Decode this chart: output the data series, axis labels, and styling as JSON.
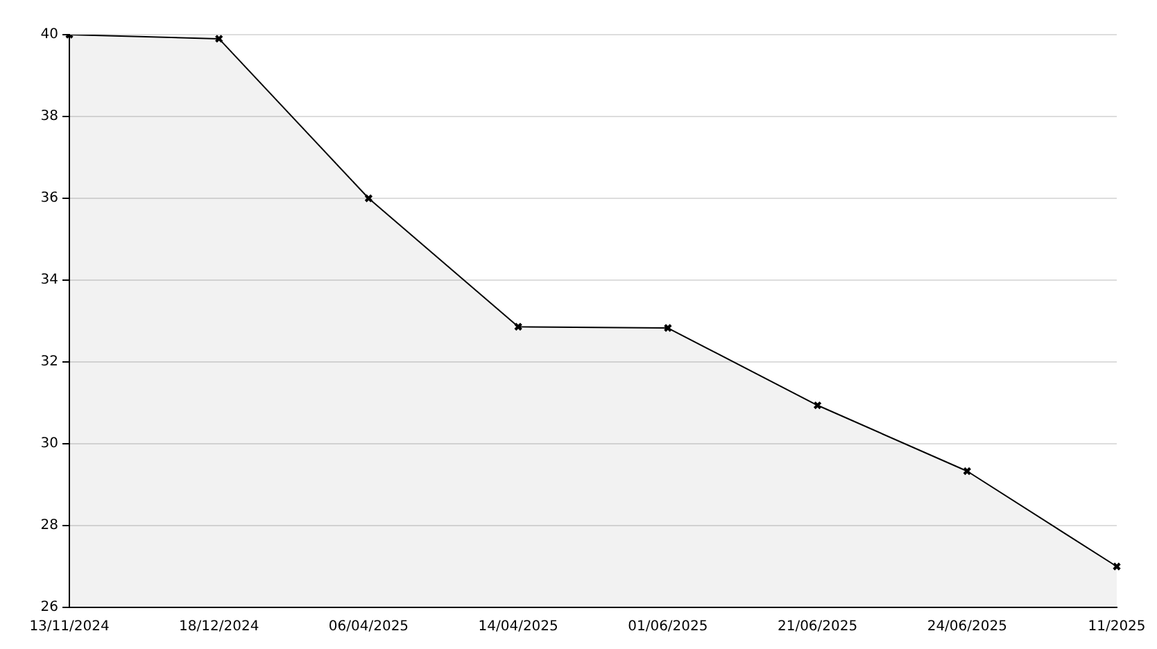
{
  "chart_data": {
    "type": "area",
    "categories": [
      "13/11/2024",
      "18/12/2024",
      "06/04/2025",
      "14/04/2025",
      "01/06/2025",
      "21/06/2025",
      "24/06/2025",
      "11/2025"
    ],
    "series": [
      {
        "color": "#000000",
        "values": [
          40,
          39.9,
          36,
          32.86,
          32.83,
          30.94,
          29.33,
          27
        ]
      }
    ],
    "ylim": [
      26,
      40
    ],
    "yticks": [
      26,
      28,
      30,
      32,
      34,
      36,
      38,
      40
    ],
    "grid": "y",
    "marker": "cross",
    "line_style": "solid"
  }
}
